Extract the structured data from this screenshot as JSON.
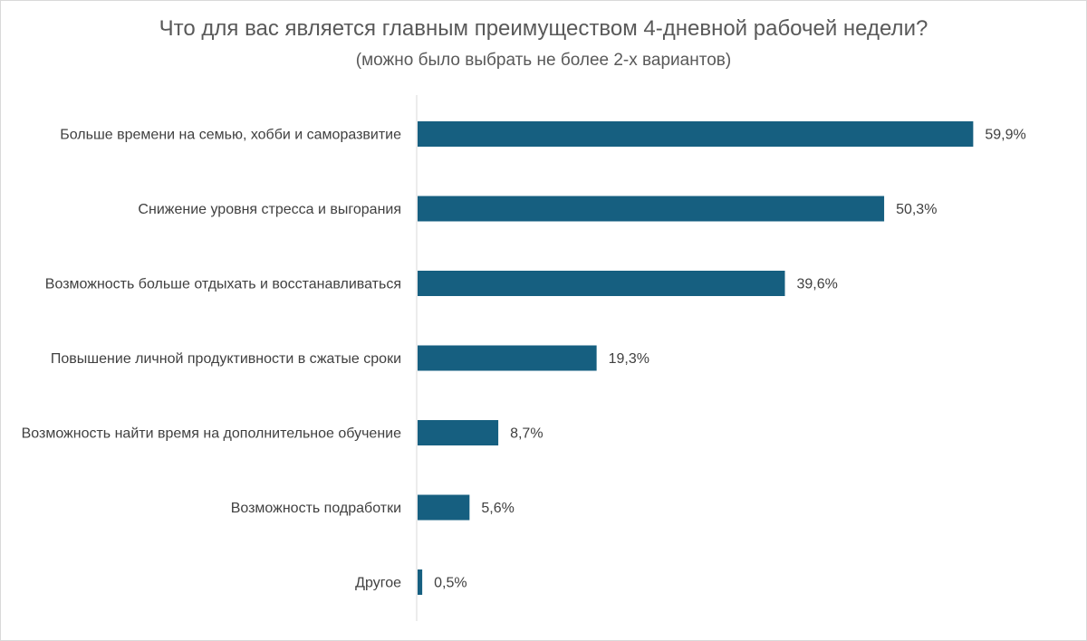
{
  "chart_data": {
    "type": "bar",
    "orientation": "horizontal",
    "title": "Что для вас является главным преимуществом 4-дневной рабочей недели?",
    "subtitle": "(можно было выбрать не более 2-х вариантов)",
    "categories": [
      "Больше времени на семью, хобби и саморазвитие",
      "Снижение уровня стресса и выгорания",
      "Возможность больше отдыхать и восстанавливаться",
      "Повышение личной продуктивности в сжатые сроки",
      "Возможность найти время на дополнительное обучение",
      "Возможность подработки",
      "Другое"
    ],
    "values": [
      59.9,
      50.3,
      39.6,
      19.3,
      8.7,
      5.6,
      0.5
    ],
    "data_labels": [
      "59,9%",
      "50,3%",
      "39,6%",
      "19,3%",
      "8,7%",
      "5,6%",
      "0,5%"
    ],
    "xlabel": "",
    "ylabel": "",
    "xlim": [
      0,
      70
    ],
    "grid": false,
    "bar_color": "#165f80"
  }
}
